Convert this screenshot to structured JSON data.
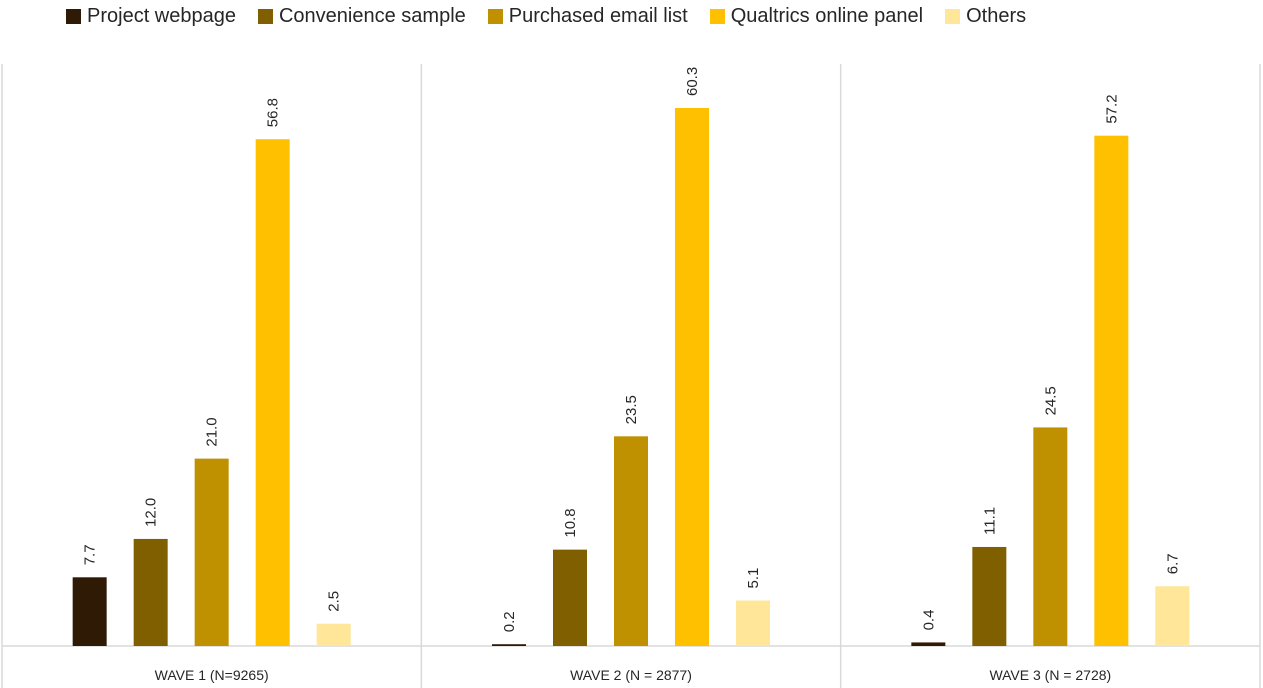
{
  "chart_data": {
    "type": "bar",
    "categories": [
      "WAVE 1 (N=9265)",
      "WAVE 2 (N = 2877)",
      "WAVE 3 (N = 2728)"
    ],
    "series": [
      {
        "name": "Project webpage",
        "color": "#2f1a05",
        "values": [
          7.7,
          0.2,
          0.4
        ]
      },
      {
        "name": "Convenience sample",
        "color": "#7f5f00",
        "values": [
          12.0,
          10.8,
          11.1
        ]
      },
      {
        "name": "Purchased email list",
        "color": "#bf9000",
        "values": [
          21.0,
          23.5,
          24.5
        ]
      },
      {
        "name": "Qualtrics online panel",
        "color": "#ffc000",
        "values": [
          56.8,
          60.3,
          57.2
        ]
      },
      {
        "name": "Others",
        "color": "#ffe699",
        "values": [
          2.5,
          5.1,
          6.7
        ]
      }
    ],
    "data_labels": [
      [
        "7.7",
        "12.0",
        "21.0",
        "56.8",
        "2.5"
      ],
      [
        "0.2",
        "10.8",
        "23.5",
        "60.3",
        "5.1"
      ],
      [
        "0.4",
        "11.1",
        "24.5",
        "57.2",
        "6.7"
      ]
    ],
    "ylim": [
      0,
      64
    ],
    "legend_position": "top",
    "grid": false,
    "title": "",
    "xlabel": "",
    "ylabel": ""
  }
}
